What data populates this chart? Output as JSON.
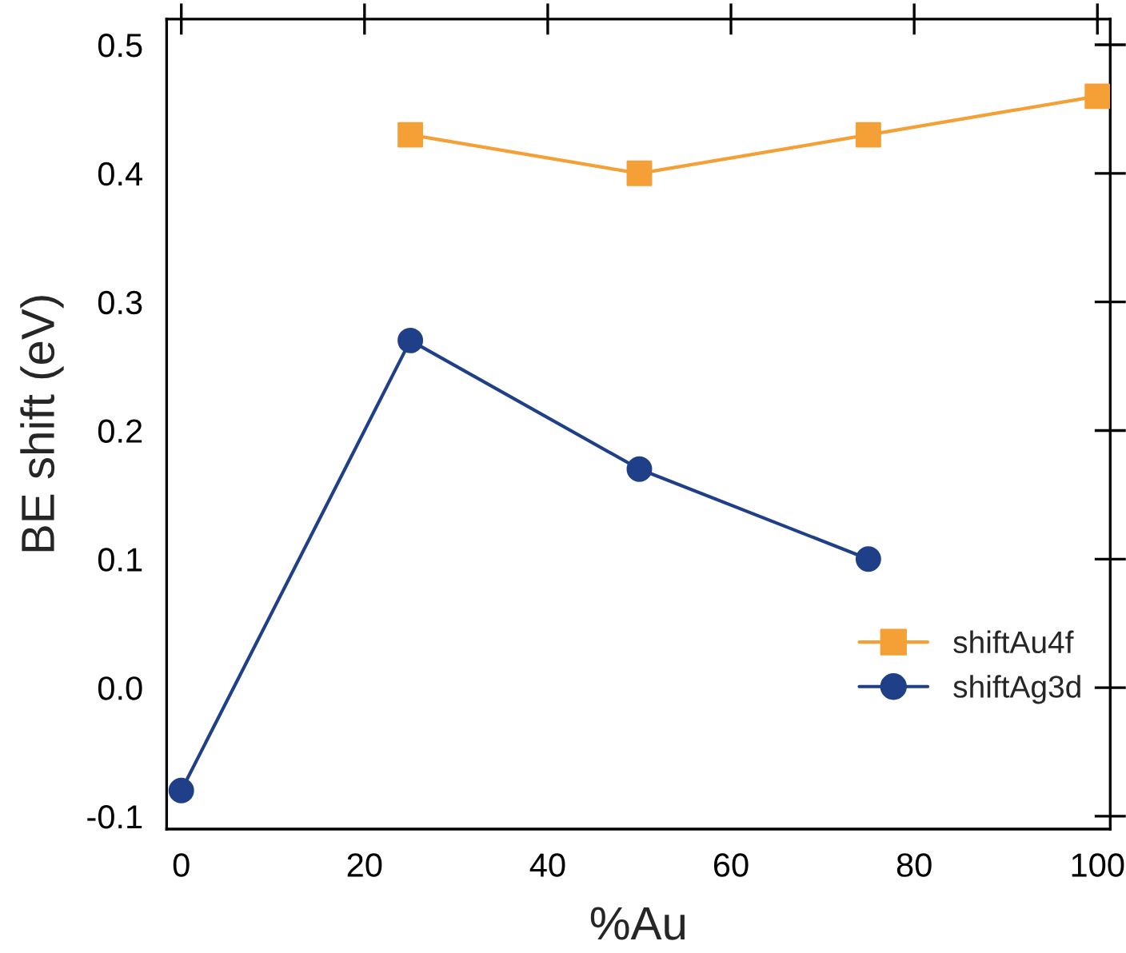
{
  "chart_data": {
    "type": "line",
    "xlabel": "%Au",
    "ylabel": "BE shift (eV)",
    "series": [
      {
        "name": "shiftAu4f",
        "color": "#f4a037",
        "marker": "square",
        "x": [
          25,
          50,
          75,
          100
        ],
        "values": [
          0.43,
          0.4,
          0.43,
          0.46
        ]
      },
      {
        "name": "shiftAg3d",
        "color": "#1f4088",
        "marker": "circle",
        "x": [
          0,
          25,
          50,
          75
        ],
        "values": [
          -0.08,
          0.27,
          0.17,
          0.1
        ]
      }
    ],
    "xlim": [
      -1.6,
      101.4
    ],
    "xticks": [
      0,
      20,
      40,
      60,
      80,
      100
    ],
    "ylim": [
      -0.11,
      0.52
    ],
    "yticks": [
      -0.1,
      {
        "value": 0,
        "label": "0.0"
      },
      0.1,
      0.2,
      0.3,
      0.4,
      0.5
    ],
    "grid": false,
    "legend": "bottom right",
    "line_style": "solid"
  }
}
